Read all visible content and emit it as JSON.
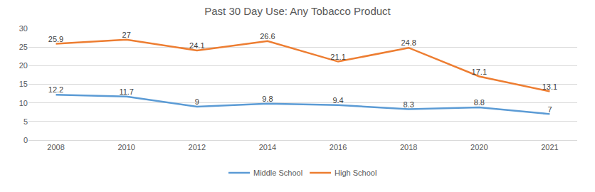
{
  "chart_data": {
    "type": "line",
    "title": "Past 30 Day Use: Any Tobacco Product",
    "categories": [
      "2008",
      "2010",
      "2012",
      "2014",
      "2016",
      "2018",
      "2020",
      "2021"
    ],
    "series": [
      {
        "name": "Middle School",
        "color": "#5b9bd5",
        "values": [
          12.2,
          11.7,
          9,
          9.8,
          9.4,
          8.3,
          8.8,
          7
        ]
      },
      {
        "name": "High School",
        "color": "#ed7d31",
        "values": [
          25.9,
          27,
          24.1,
          26.6,
          21.1,
          24.8,
          17.1,
          13.1
        ]
      }
    ],
    "ylim": [
      0,
      30
    ],
    "yticks": [
      0,
      5,
      10,
      15,
      20,
      25,
      30
    ],
    "grid": true,
    "legend": "bottom",
    "data_labels": true
  }
}
